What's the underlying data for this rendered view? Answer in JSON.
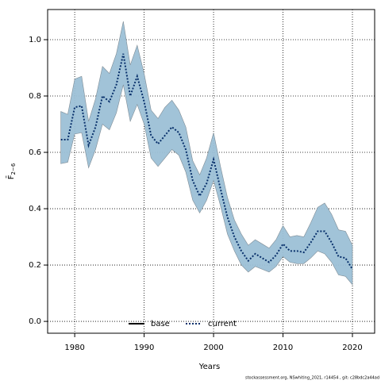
{
  "chart_data": {
    "type": "line",
    "xlabel": "Years",
    "ylabel": "F̄",
    "ylabel_sub": "2−6",
    "footer": "stockassessment.org, NSwhiting_2021, r14454 , git: c28bdc2a44ad",
    "x": [
      1978,
      1979,
      1980,
      1981,
      1982,
      1983,
      1984,
      1985,
      1986,
      1987,
      1988,
      1989,
      1990,
      1991,
      1992,
      1993,
      1994,
      1995,
      1996,
      1997,
      1998,
      1999,
      2000,
      2001,
      2002,
      2003,
      2004,
      2005,
      2006,
      2007,
      2008,
      2009,
      2010,
      2011,
      2012,
      2013,
      2014,
      2015,
      2016,
      2017,
      2018,
      2019,
      2020
    ],
    "series": [
      {
        "name": "current",
        "color": "#08306b",
        "band_color": "#9cc0d6",
        "values": [
          0.645,
          0.645,
          0.76,
          0.765,
          0.625,
          0.69,
          0.8,
          0.78,
          0.84,
          0.95,
          0.8,
          0.87,
          0.78,
          0.66,
          0.63,
          0.66,
          0.69,
          0.67,
          0.61,
          0.5,
          0.445,
          0.49,
          0.575,
          0.47,
          0.37,
          0.3,
          0.25,
          0.215,
          0.24,
          0.225,
          0.21,
          0.235,
          0.275,
          0.25,
          0.25,
          0.245,
          0.28,
          0.32,
          0.32,
          0.28,
          0.23,
          0.225,
          0.185
        ],
        "lower": [
          0.56,
          0.565,
          0.665,
          0.67,
          0.545,
          0.61,
          0.7,
          0.68,
          0.74,
          0.84,
          0.71,
          0.77,
          0.7,
          0.58,
          0.55,
          0.58,
          0.61,
          0.59,
          0.53,
          0.43,
          0.385,
          0.43,
          0.5,
          0.41,
          0.31,
          0.25,
          0.2,
          0.175,
          0.195,
          0.185,
          0.175,
          0.195,
          0.23,
          0.21,
          0.205,
          0.205,
          0.225,
          0.25,
          0.24,
          0.21,
          0.165,
          0.16,
          0.13
        ],
        "upper": [
          0.745,
          0.735,
          0.86,
          0.87,
          0.71,
          0.79,
          0.905,
          0.88,
          0.95,
          1.065,
          0.91,
          0.98,
          0.88,
          0.75,
          0.72,
          0.76,
          0.785,
          0.75,
          0.69,
          0.57,
          0.52,
          0.58,
          0.67,
          0.55,
          0.44,
          0.36,
          0.31,
          0.27,
          0.29,
          0.275,
          0.26,
          0.29,
          0.34,
          0.3,
          0.305,
          0.3,
          0.35,
          0.405,
          0.42,
          0.38,
          0.325,
          0.32,
          0.27
        ]
      }
    ],
    "legend": [
      {
        "name": "base",
        "color": "#000000",
        "style": "solid"
      },
      {
        "name": "current",
        "color": "#08306b",
        "style": "dotted"
      }
    ],
    "xlim": [
      1976.1,
      2023.2
    ],
    "ylim": [
      -0.042,
      1.107
    ],
    "xticks": [
      1980,
      1990,
      2000,
      2010,
      2020
    ],
    "yticks": [
      {
        "value": 0,
        "label": "0.0"
      },
      0.2,
      0.4,
      0.6,
      0.8,
      {
        "value": 1,
        "label": "1.0"
      }
    ],
    "grid": true
  }
}
